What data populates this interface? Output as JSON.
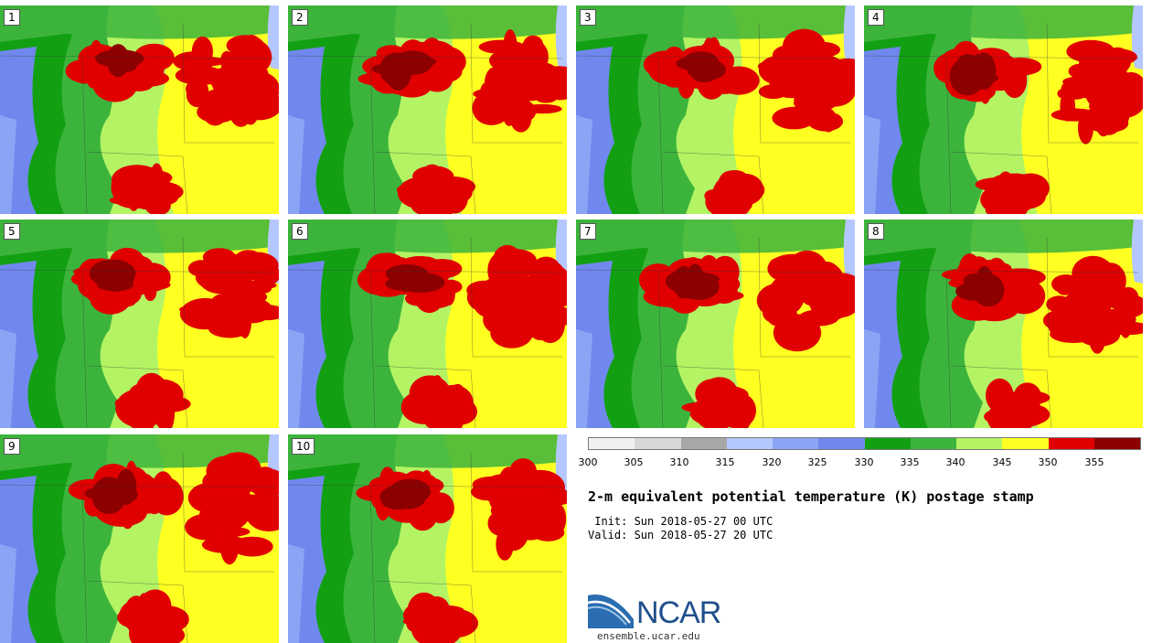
{
  "panels": [
    {
      "label": "1"
    },
    {
      "label": "2"
    },
    {
      "label": "3"
    },
    {
      "label": "4"
    },
    {
      "label": "5"
    },
    {
      "label": "6"
    },
    {
      "label": "7"
    },
    {
      "label": "8"
    },
    {
      "label": "9"
    },
    {
      "label": "10"
    }
  ],
  "colorbar": {
    "ticks": [
      "300",
      "305",
      "310",
      "315",
      "320",
      "325",
      "330",
      "335",
      "340",
      "345",
      "350",
      "355"
    ],
    "colors": [
      "#f0f0f0",
      "#d8d8d8",
      "#a8a8a8",
      "#b4c8ff",
      "#8ca4f4",
      "#7088ee",
      "#12a012",
      "#3cb43c",
      "#b4f464",
      "#ffff22",
      "#e00000",
      "#8c0000"
    ]
  },
  "title": "2-m equivalent potential temperature (K) postage stamp",
  "init": " Init: Sun 2018-05-27 00 UTC",
  "valid": "Valid: Sun 2018-05-27 20 UTC",
  "logo_text": "NCAR",
  "site": "ensemble.ucar.edu"
}
